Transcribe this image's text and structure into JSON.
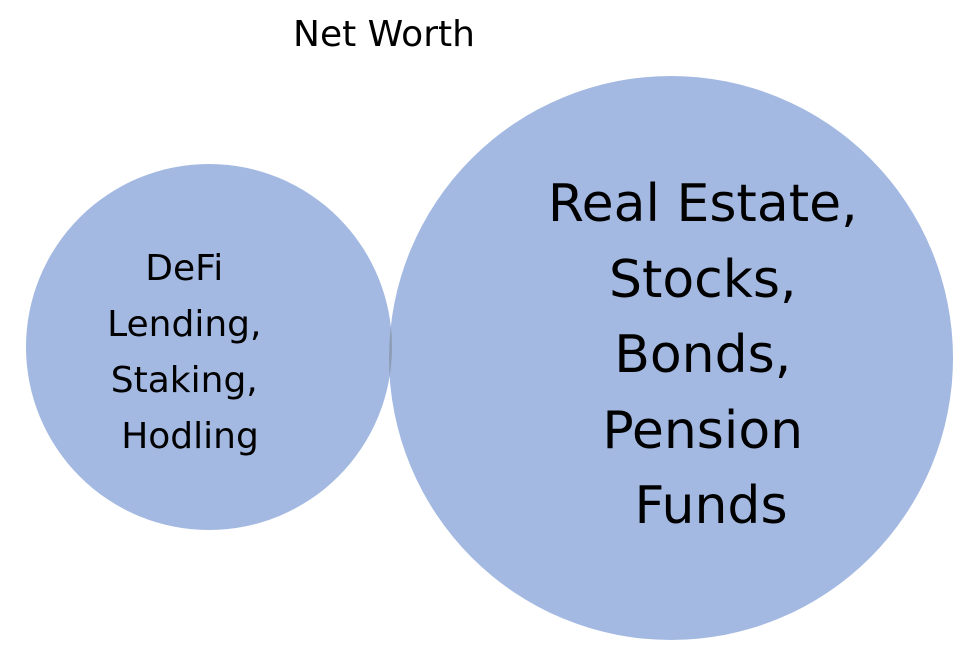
{
  "title": "Net Worth",
  "colors": {
    "circle_fill": "#a3b9e2",
    "overlap_fill": "#8c9db4",
    "text": "#000000"
  },
  "circles": [
    {
      "id": "defi",
      "lines": [
        "DeFi",
        "Lending,",
        "Staking,",
        "Hodling"
      ]
    },
    {
      "id": "traditional",
      "lines": [
        "Real Estate,",
        "Stocks,",
        "Bonds,",
        "Pension",
        "Funds"
      ]
    }
  ]
}
